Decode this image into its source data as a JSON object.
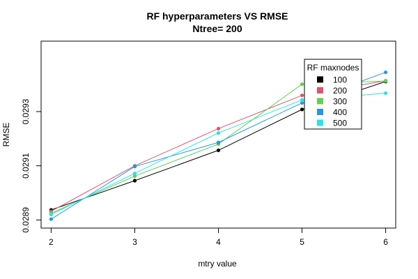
{
  "chart_data": {
    "type": "line",
    "title": "RF hyperparameters VS RMSE",
    "subtitle": "Ntree= 200",
    "xlabel": "mtry value",
    "ylabel": "RMSE",
    "x": [
      2,
      3,
      4,
      5,
      6
    ],
    "xticks": [
      "2",
      "3",
      "4",
      "5",
      "6"
    ],
    "yticks": [
      {
        "value": 0.0289,
        "label": "0.0289"
      },
      {
        "value": 0.0291,
        "label": "0.0291"
      },
      {
        "value": 0.0293,
        "label": "0.0293"
      }
    ],
    "xlim": [
      1.88,
      6.12
    ],
    "ylim": [
      0.02887,
      0.02956
    ],
    "grid": false,
    "legend": {
      "title": "RF maxnodes",
      "placement": "top-right (inside)"
    },
    "series": [
      {
        "name": "100",
        "color": "#000000",
        "values": [
          0.028937,
          0.029045,
          0.029157,
          0.029308,
          0.029411
        ]
      },
      {
        "name": "200",
        "color": "#DF536B",
        "values": [
          0.028932,
          0.0291,
          0.029237,
          0.02936,
          0.029414
        ]
      },
      {
        "name": "300",
        "color": "#61D04F",
        "values": [
          0.028925,
          0.029062,
          0.02918,
          0.029401,
          0.029413
        ]
      },
      {
        "name": "400",
        "color": "#2297E6",
        "values": [
          0.028903,
          0.029097,
          0.029186,
          0.029332,
          0.029445
        ]
      },
      {
        "name": "500",
        "color": "#28E2E5",
        "values": [
          0.02892,
          0.029072,
          0.029221,
          0.029343,
          0.029368
        ]
      }
    ]
  }
}
